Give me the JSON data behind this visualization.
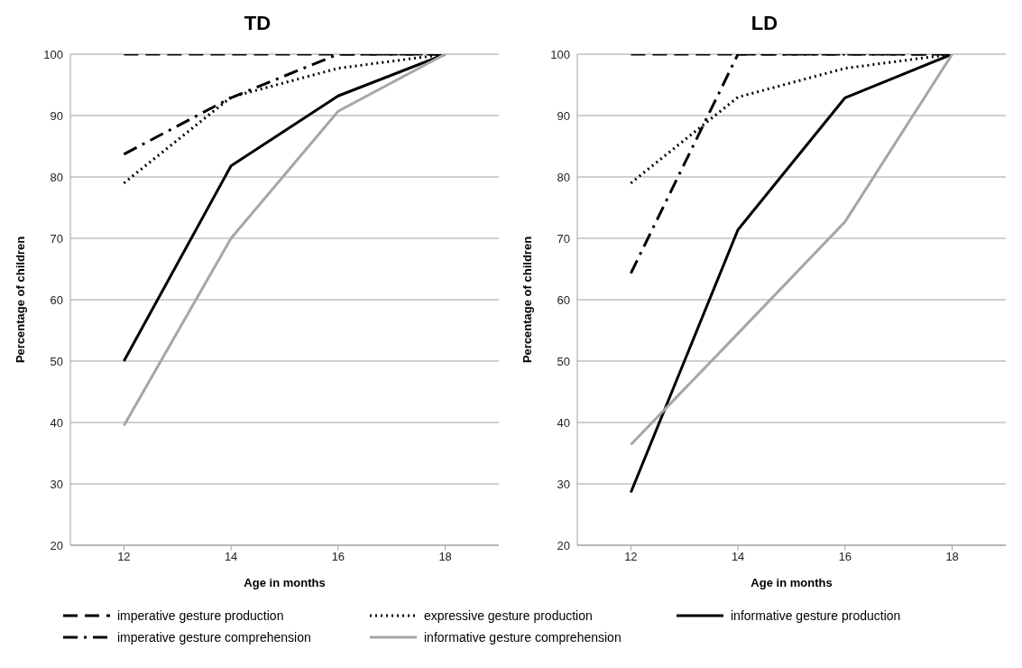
{
  "chart_data": [
    {
      "type": "line",
      "title": "TD",
      "xlabel": "Age in months",
      "ylabel": "Percentage of children",
      "categories": [
        "12",
        "14",
        "16",
        "18"
      ],
      "ylim": [
        20,
        100
      ],
      "yticks": [
        20,
        30,
        40,
        50,
        60,
        70,
        80,
        90,
        100
      ],
      "grid": "y",
      "legend": "bottom",
      "marker": "none",
      "series": [
        {
          "name": "imperative gesture production",
          "color": "#000000",
          "line_style": "dashed",
          "values": [
            100,
            100,
            100,
            100
          ]
        },
        {
          "name": "expressive gesture production",
          "color": "#000000",
          "line_style": "dotted",
          "values": [
            79,
            93,
            97.7,
            100
          ]
        },
        {
          "name": "informative gesture production",
          "color": "#000000",
          "line_style": "solid",
          "values": [
            50,
            81.8,
            93.2,
            100
          ]
        },
        {
          "name": "imperative gesture comprehension",
          "color": "#000000",
          "line_style": "dashdot",
          "values": [
            83.7,
            92.9,
            100,
            100
          ]
        },
        {
          "name": "informative gesture comprehension",
          "color": "#a6a6a6",
          "line_style": "solid",
          "values": [
            39.5,
            70,
            90.7,
            100
          ]
        }
      ]
    },
    {
      "type": "line",
      "title": "LD",
      "xlabel": "Age in months",
      "ylabel": "Percentage of children",
      "categories": [
        "12",
        "14",
        "16",
        "18"
      ],
      "ylim": [
        20,
        100
      ],
      "yticks": [
        20,
        30,
        40,
        50,
        60,
        70,
        80,
        90,
        100
      ],
      "grid": "y",
      "marker": "none",
      "series": [
        {
          "color": "#000000",
          "line_style": "dashed",
          "values": [
            100,
            100,
            100,
            100
          ]
        },
        {
          "color": "#000000",
          "line_style": "dotted",
          "values": [
            79,
            93,
            97.7,
            100
          ]
        },
        {
          "color": "#000000",
          "line_style": "solid",
          "values": [
            28.6,
            71.4,
            92.9,
            100
          ]
        },
        {
          "color": "#000000",
          "line_style": "dashdot",
          "values": [
            64.3,
            100,
            100,
            100
          ]
        },
        {
          "color": "#a6a6a6",
          "line_style": "solid",
          "values": [
            36.4,
            54.5,
            72.7,
            100
          ]
        }
      ]
    }
  ]
}
